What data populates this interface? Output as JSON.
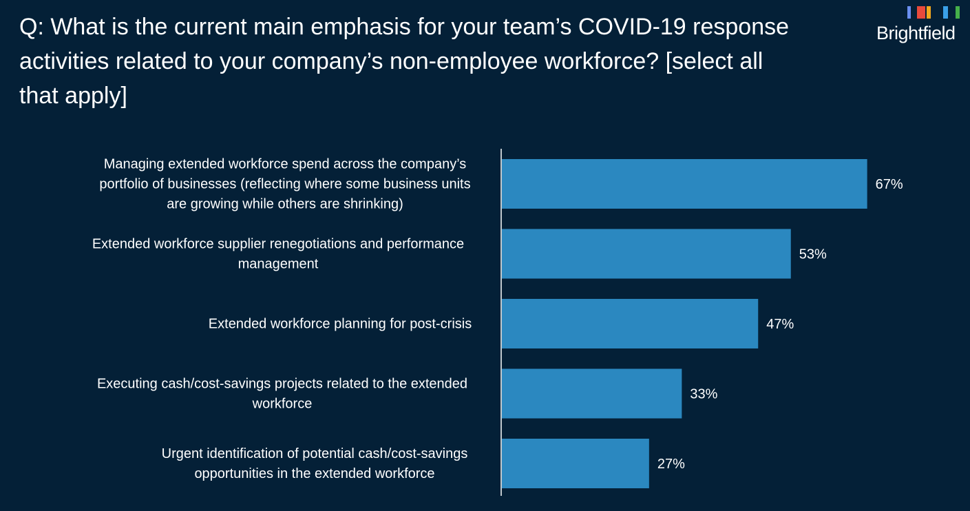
{
  "header": {
    "title": "Q: What is the current main emphasis for your team’s COVID-19 response activities related to your company’s non-employee workforce? [select all that apply]"
  },
  "logo": {
    "text": "Brightfield",
    "bar_colors": [
      "#6a8ff0",
      "#e84a3c",
      "#f2a81d",
      "#3aa0e8",
      "#46b04a"
    ]
  },
  "colors": {
    "background": "#042037",
    "bar": "#2b88c0",
    "text": "#ffffff"
  },
  "chart_data": {
    "type": "bar",
    "orientation": "horizontal",
    "categories": [
      [
        "Managing extended workforce spend across the company’s",
        "portfolio of businesses (reflecting where some business units",
        "are growing while others are shrinking)"
      ],
      [
        "Extended workforce supplier renegotiations and performance",
        "management"
      ],
      [
        "Extended workforce planning for post-crisis"
      ],
      [
        "Executing cash/cost-savings projects related to the extended",
        "workforce"
      ],
      [
        "Urgent identification of potential cash/cost-savings",
        "opportunities in the extended workforce"
      ]
    ],
    "values": [
      67,
      53,
      47,
      33,
      27
    ],
    "value_labels": [
      "67%",
      "53%",
      "47%",
      "33%",
      "27%"
    ],
    "xlim": [
      0,
      100
    ],
    "grid": false,
    "legend": "none"
  }
}
